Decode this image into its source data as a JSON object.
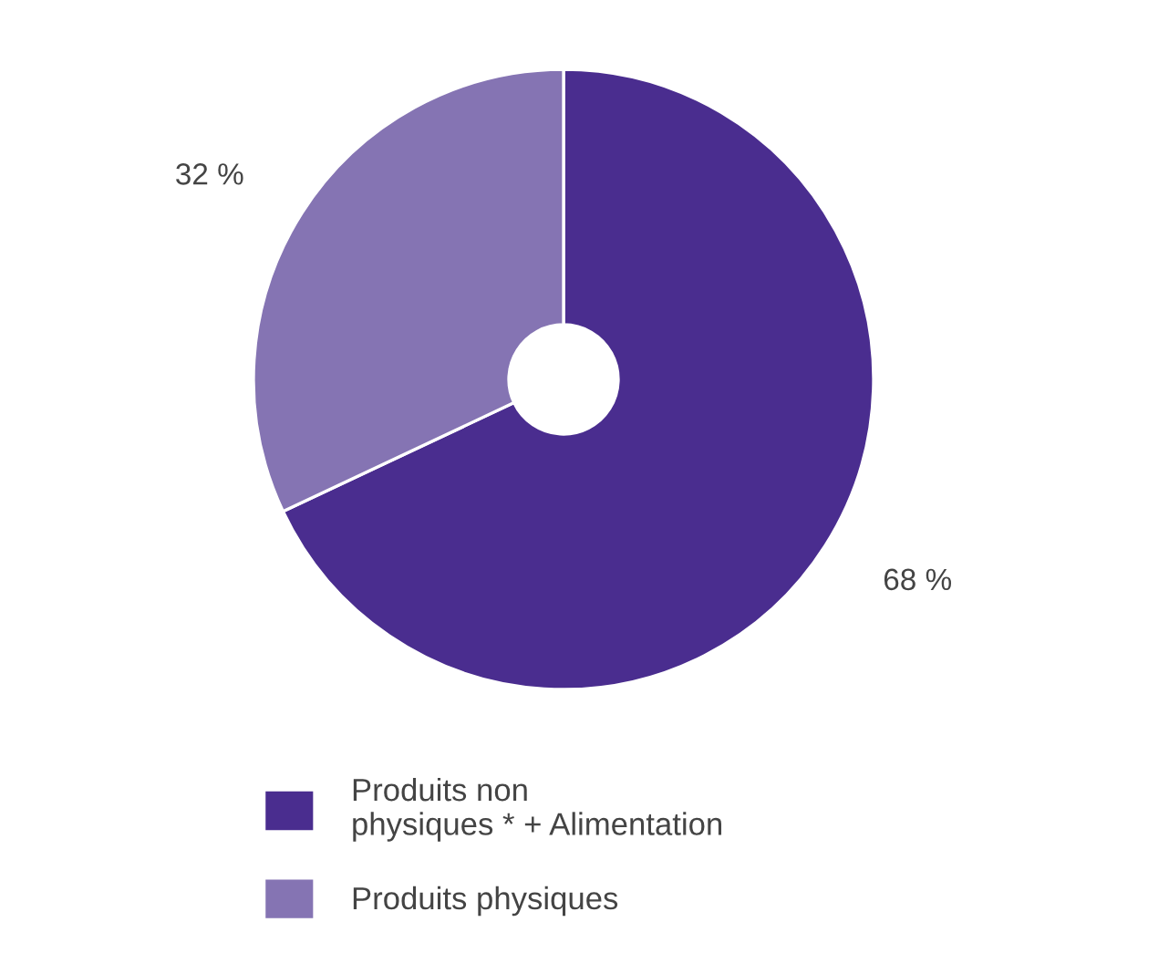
{
  "chart_data": {
    "type": "donut",
    "categories": [
      "Produits non\nphysiques * + Alimentation",
      "Produits physiques"
    ],
    "values": [
      68,
      32
    ],
    "colors": [
      "#4a2d8f",
      "#8574b3"
    ],
    "value_labels": [
      "68 %",
      "32 %"
    ],
    "legend": "bottom left"
  }
}
